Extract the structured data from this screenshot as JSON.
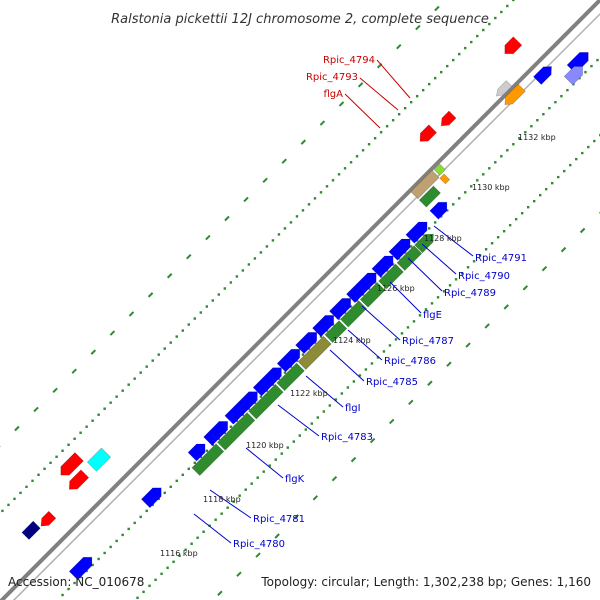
{
  "title": "Ralstonia pickettii 12J chromosome 2, complete sequence",
  "footer": {
    "accession": "Accession: NC_010678",
    "summary": "Topology: circular; Length: 1,302,238 bp; Genes: 1,160"
  },
  "colors": {
    "backbone": "#808080",
    "cds_forward": "#0000ff",
    "cds_reverse": "#ff0000",
    "flagellar": "#2e8b2e",
    "label_forward": "#0000cc",
    "label_reverse": "#cc0000",
    "grid_dot": "#2e8b2e"
  },
  "kbp_ticks": [
    "1116 kbp",
    "1118 kbp",
    "1120 kbp",
    "1122 kbp",
    "1124 kbp",
    "1126 kbp",
    "1128 kbp",
    "1130 kbp",
    "1132 kbp"
  ],
  "gene_labels": [
    {
      "text": "Rpic_4794",
      "strand": "reverse"
    },
    {
      "text": "Rpic_4793",
      "strand": "reverse"
    },
    {
      "text": "flgA",
      "strand": "reverse"
    },
    {
      "text": "Rpic_4791",
      "strand": "forward"
    },
    {
      "text": "Rpic_4790",
      "strand": "forward"
    },
    {
      "text": "Rpic_4789",
      "strand": "forward"
    },
    {
      "text": "flgE",
      "strand": "forward"
    },
    {
      "text": "Rpic_4787",
      "strand": "forward"
    },
    {
      "text": "Rpic_4786",
      "strand": "forward"
    },
    {
      "text": "Rpic_4785",
      "strand": "forward"
    },
    {
      "text": "flgI",
      "strand": "forward"
    },
    {
      "text": "Rpic_4783",
      "strand": "forward"
    },
    {
      "text": "flgK",
      "strand": "forward"
    },
    {
      "text": "Rpic_4781",
      "strand": "forward"
    },
    {
      "text": "Rpic_4780",
      "strand": "forward"
    }
  ]
}
